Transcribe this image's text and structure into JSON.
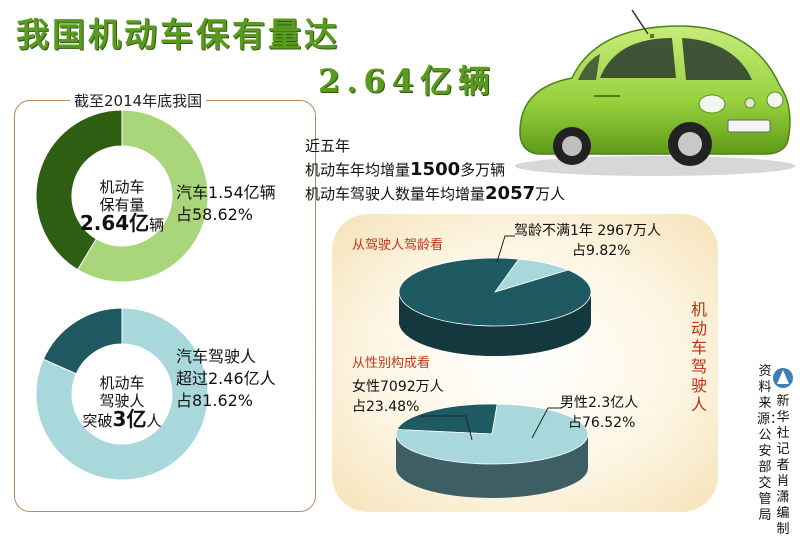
{
  "title": {
    "line1": "我国机动车保有量达",
    "line2": "2.64亿辆"
  },
  "left_caption": "截至2014年底我国",
  "stats": {
    "line1": "近五年",
    "line2_pre": "机动车年均增量",
    "line2_num": "1500",
    "line2_post": "多万辆",
    "line3_pre": "机动车驾驶人数量年均增量",
    "line3_num": "2057",
    "line3_post": "万人"
  },
  "vertical_label": "机动车驾驶人",
  "source": {
    "col1": "资料来源：公安部交管局",
    "col2": "新华社记者肖潇编制"
  },
  "colors": {
    "title_green": "#5a9a1e",
    "dark_green": "#2e5e12",
    "light_green": "#a9d67a",
    "dark_teal": "#1f5a62",
    "light_teal": "#a9d8dc",
    "heading_red": "#c0361a",
    "car_body": "#9ad43e"
  },
  "chart_data": [
    {
      "type": "pie",
      "variant": "donut",
      "center": {
        "line1": "机动车",
        "line2": "保有量",
        "value": "2.64亿",
        "unit": "辆"
      },
      "slices": [
        {
          "label": "汽车1.54亿辆",
          "pct_label": "占58.62%",
          "value": 58.62,
          "highlight": "light"
        },
        {
          "label": "",
          "value": 41.38,
          "highlight": "dark"
        }
      ]
    },
    {
      "type": "pie",
      "variant": "donut",
      "center": {
        "line1": "机动车",
        "line2": "驾驶人",
        "line3_pre": "突破",
        "value": "3亿",
        "unit": "人"
      },
      "slices": [
        {
          "label": "汽车驾驶人",
          "label2": "超过2.46亿人",
          "pct_label": "占81.62%",
          "value": 81.62,
          "highlight": "light"
        },
        {
          "label": "",
          "value": 18.38,
          "highlight": "dark"
        }
      ]
    },
    {
      "type": "pie",
      "variant": "3d",
      "heading": "从驾驶人驾龄看",
      "slices": [
        {
          "label": "驾龄不满1年 2967万人",
          "pct_label": "占9.82%",
          "value": 9.82,
          "highlight": "light"
        },
        {
          "label": "",
          "value": 90.18,
          "highlight": "dark"
        }
      ]
    },
    {
      "type": "pie",
      "variant": "3d",
      "heading": "从性别构成看",
      "slices": [
        {
          "label": "女性7092万人",
          "pct_label": "占23.48%",
          "value": 23.48,
          "highlight": "dark"
        },
        {
          "label": "男性2.3亿人",
          "pct_label": "占76.52%",
          "value": 76.52,
          "highlight": "light"
        }
      ]
    }
  ]
}
